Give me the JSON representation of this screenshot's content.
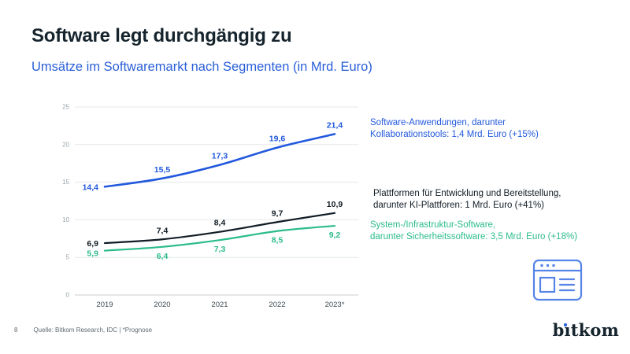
{
  "slide": {
    "title": "Software legt durchgängig zu",
    "subtitle": "Umsätze im Softwaremarkt nach Segmenten (in Mrd. Euro)",
    "page_number": "8",
    "source": "Quelle: Bitkom Research, IDC | *Prognose",
    "logo_text": "bitkom"
  },
  "colors": {
    "blue": "#2158dd",
    "black": "#111c25",
    "green": "#2cbc8c",
    "grid": "#e4e7e9",
    "axis": "#c9ced2",
    "tick": "#9aa4ab",
    "year": "#3d4a52",
    "icon_blue": "#5584e8",
    "footer": "#5f6b73"
  },
  "chart_data": {
    "type": "line",
    "title": "Umsätze im Softwaremarkt nach Segmenten (in Mrd. Euro)",
    "x": [
      "2019",
      "2020",
      "2021",
      "2022",
      "2023*"
    ],
    "ylim": [
      0,
      25
    ],
    "yticks": [
      0,
      5,
      10,
      15,
      20,
      25
    ],
    "grid": true,
    "legend_position": "right",
    "series": [
      {
        "name": "Software-Anwendungen",
        "values": [
          14.4,
          15.5,
          17.3,
          19.6,
          21.4
        ],
        "labels": [
          "14,4",
          "15,5",
          "17,3",
          "19,6",
          "21,4"
        ],
        "color_key": "blue",
        "label_pos": "above"
      },
      {
        "name": "Plattformen für Entwicklung und Bereitstellung",
        "values": [
          6.9,
          7.4,
          8.4,
          9.7,
          10.9
        ],
        "labels": [
          "6,9",
          "7,4",
          "8,4",
          "9,7",
          "10,9"
        ],
        "color_key": "black",
        "label_pos": "above"
      },
      {
        "name": "System-/Infrastruktur-Software",
        "values": [
          5.9,
          6.4,
          7.3,
          8.5,
          9.2
        ],
        "labels": [
          "5,9",
          "6,4",
          "7,3",
          "8,5",
          "9,2"
        ],
        "color_key": "green",
        "label_pos": "below"
      }
    ],
    "legend": [
      {
        "color_key": "blue",
        "lines": [
          "Software-Anwendungen, darunter",
          "Kollaborationstools: 1,4 Mrd. Euro (+15%)"
        ]
      },
      {
        "color_key": "black",
        "lines": [
          "Plattformen für Entwicklung und Bereitstellung,",
          "darunter KI-Plattforen: 1 Mrd. Euro (+41%)"
        ]
      },
      {
        "color_key": "green",
        "lines": [
          "System-/Infrastruktur-Software,",
          "darunter Sicherheitssoftware: 3,5 Mrd. Euro (+18%)"
        ]
      }
    ]
  }
}
